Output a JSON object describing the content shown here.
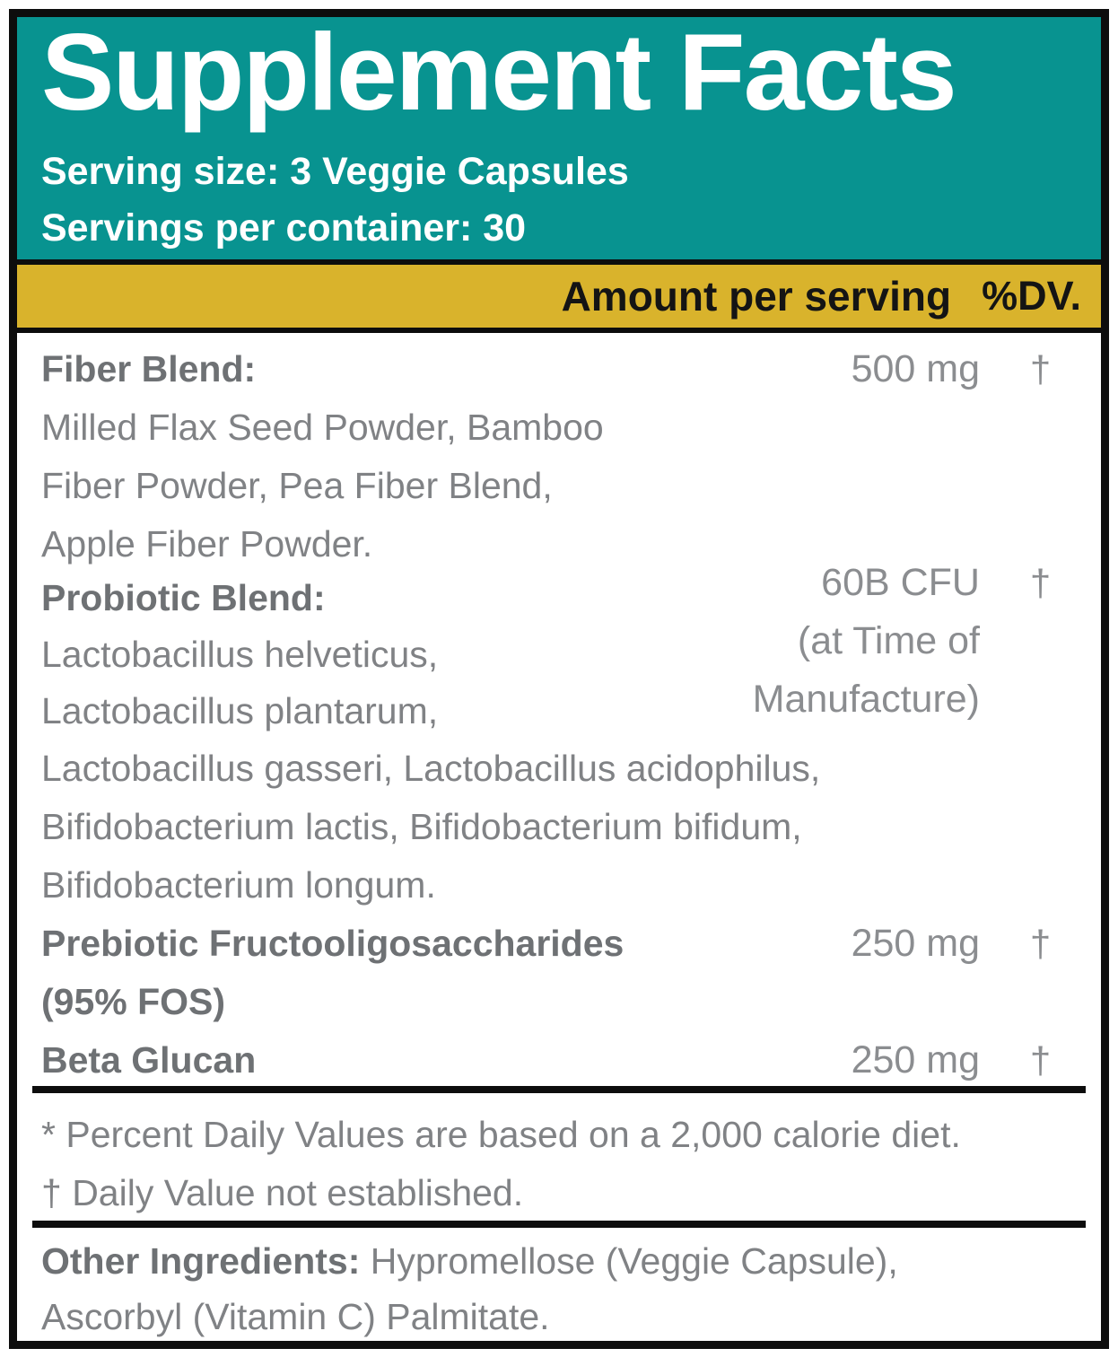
{
  "label": {
    "header": {
      "title": "Supplement Facts",
      "serving_size": "Serving size: 3 Veggie Capsules",
      "servings_per_container": "Servings per container: 30"
    },
    "column_headers": {
      "amount": "Amount per serving",
      "dv": "%DV."
    },
    "rows": [
      {
        "name": "Fiber Blend:",
        "amount": "500 mg",
        "dv": "†",
        "description": [
          "Milled Flax Seed Powder, Bamboo",
          "Fiber Powder, Pea Fiber Blend,",
          "Apple Fiber Powder."
        ]
      },
      {
        "name": "Probiotic Blend:",
        "amount": "60B CFU",
        "amount_note": [
          "(at Time of",
          "Manufacture)"
        ],
        "dv": "†",
        "description": [
          "Lactobacillus helveticus,",
          "Lactobacillus plantarum,",
          "Lactobacillus gasseri, Lactobacillus acidophilus,",
          "Bifidobacterium lactis, Bifidobacterium bifidum,",
          "Bifidobacterium longum."
        ]
      },
      {
        "name": "Prebiotic Fructooligosaccharides",
        "name_line2": "(95% FOS)",
        "amount": "250 mg",
        "dv": "†"
      },
      {
        "name": "Beta Glucan",
        "amount": "250 mg",
        "dv": "†"
      }
    ],
    "footnotes": [
      "* Percent Daily Values are based on a 2,000 calorie diet.",
      "† Daily Value not established."
    ],
    "other_ingredients": {
      "label": "Other Ingredients:",
      "line1": " Hypromellose (Veggie Capsule),",
      "line2": "Ascorbyl (Vitamin C) Palmitate."
    },
    "colors": {
      "header_teal": "#089390",
      "column_bar_gold": "#d9b32c",
      "border_black": "#0d0d0d",
      "body_text_gray": "#808285",
      "bold_text_gray": "#6e7174",
      "amount_text_gray": "#8b8d90",
      "header_text_white": "#ffffff"
    }
  }
}
